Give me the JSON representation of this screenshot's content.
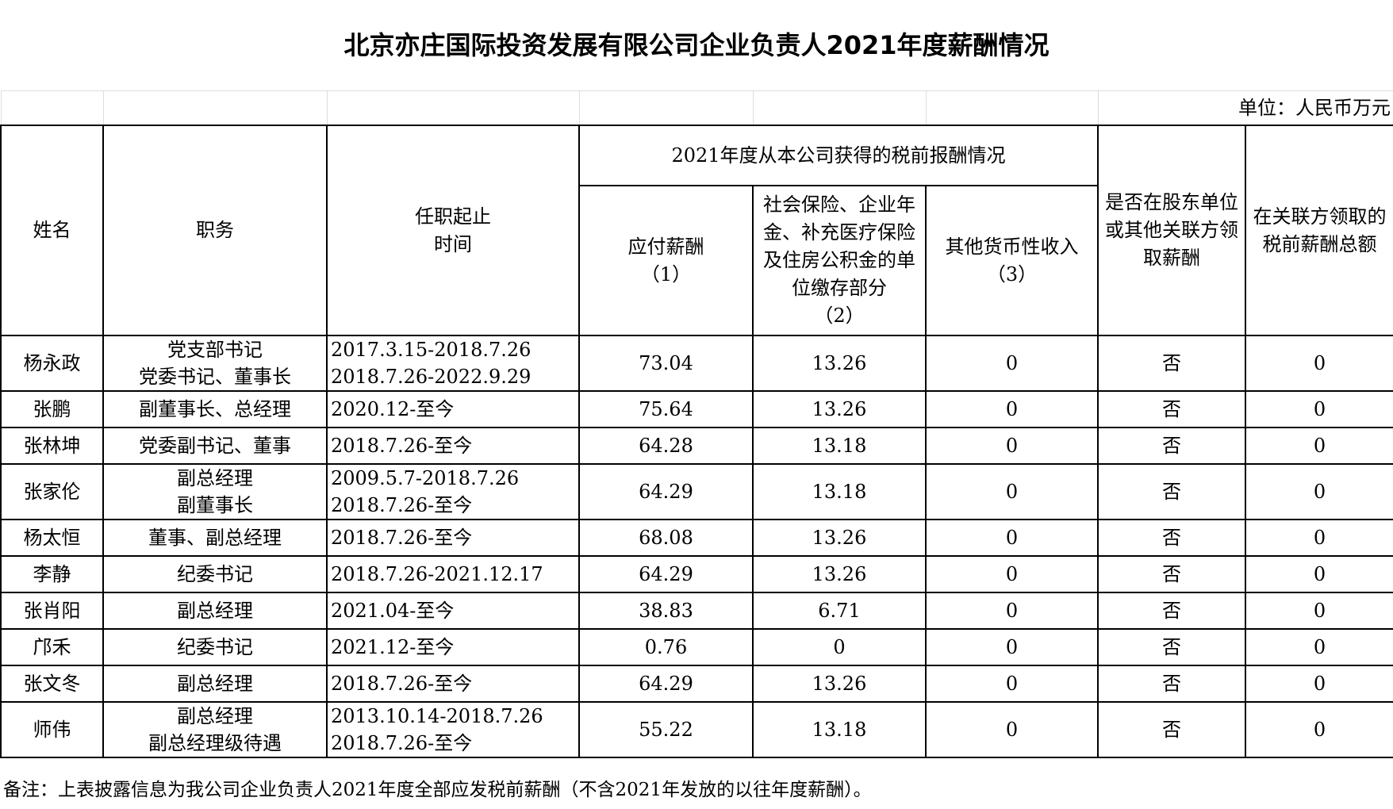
{
  "title": "北京亦庄国际投资发展有限公司企业负责人2021年度薪酬情况",
  "unit": "单位：人民币万元",
  "headers": {
    "name": "姓名",
    "position": "职务",
    "term": "任职起止\n时间",
    "group": "2021年度从本公司获得的税前报酬情况",
    "salary": "应付薪酬\n（1）",
    "insurance": "社会保险、企业年金、补充医疗保险及住房公积金的单位缴存部分\n（2）",
    "other": "其他货币性收入\n（3）",
    "related": "是否在股东单位或其他关联方领取薪酬",
    "related_total": "在关联方领取的税前薪酬总额"
  },
  "rows": [
    {
      "name": "杨永政",
      "position": "党支部书记\n党委书记、董事长",
      "term": "2017.3.15-2018.7.26\n2018.7.26-2022.9.29",
      "salary": "73.04",
      "insurance": "13.26",
      "other": "0",
      "related": "否",
      "related_total": "0"
    },
    {
      "name": "张鹏",
      "position": "副董事长、总经理",
      "term": "2020.12-至今",
      "salary": "75.64",
      "insurance": "13.26",
      "other": "0",
      "related": "否",
      "related_total": "0"
    },
    {
      "name": "张林坤",
      "position": "党委副书记、董事",
      "term": "2018.7.26-至今",
      "salary": "64.28",
      "insurance": "13.18",
      "other": "0",
      "related": "否",
      "related_total": "0"
    },
    {
      "name": "张家伦",
      "position": "副总经理\n副董事长",
      "term": "2009.5.7-2018.7.26\n2018.7.26-至今",
      "salary": "64.29",
      "insurance": "13.18",
      "other": "0",
      "related": "否",
      "related_total": "0"
    },
    {
      "name": "杨太恒",
      "position": "董事、副总经理",
      "term": "2018.7.26-至今",
      "salary": "68.08",
      "insurance": "13.26",
      "other": "0",
      "related": "否",
      "related_total": "0"
    },
    {
      "name": "李静",
      "position": "纪委书记",
      "term": "2018.7.26-2021.12.17",
      "salary": "64.29",
      "insurance": "13.26",
      "other": "0",
      "related": "否",
      "related_total": "0"
    },
    {
      "name": "张肖阳",
      "position": "副总经理",
      "term": "2021.04-至今",
      "salary": "38.83",
      "insurance": "6.71",
      "other": "0",
      "related": "否",
      "related_total": "0"
    },
    {
      "name": "邝禾",
      "position": "纪委书记",
      "term": "2021.12-至今",
      "salary": "0.76",
      "insurance": "0",
      "other": "0",
      "related": "否",
      "related_total": "0"
    },
    {
      "name": "张文冬",
      "position": "副总经理",
      "term": "2018.7.26-至今",
      "salary": "64.29",
      "insurance": "13.26",
      "other": "0",
      "related": "否",
      "related_total": "0"
    },
    {
      "name": "师伟",
      "position": "副总经理\n副总经理级待遇",
      "term": "2013.10.14-2018.7.26\n2018.7.26-至今",
      "salary": "55.22",
      "insurance": "13.18",
      "other": "0",
      "related": "否",
      "related_total": "0"
    }
  ],
  "note": "备注：上表披露信息为我公司企业负责人2021年度全部应发税前薪酬（不含2021年发放的以往年度薪酬）。"
}
